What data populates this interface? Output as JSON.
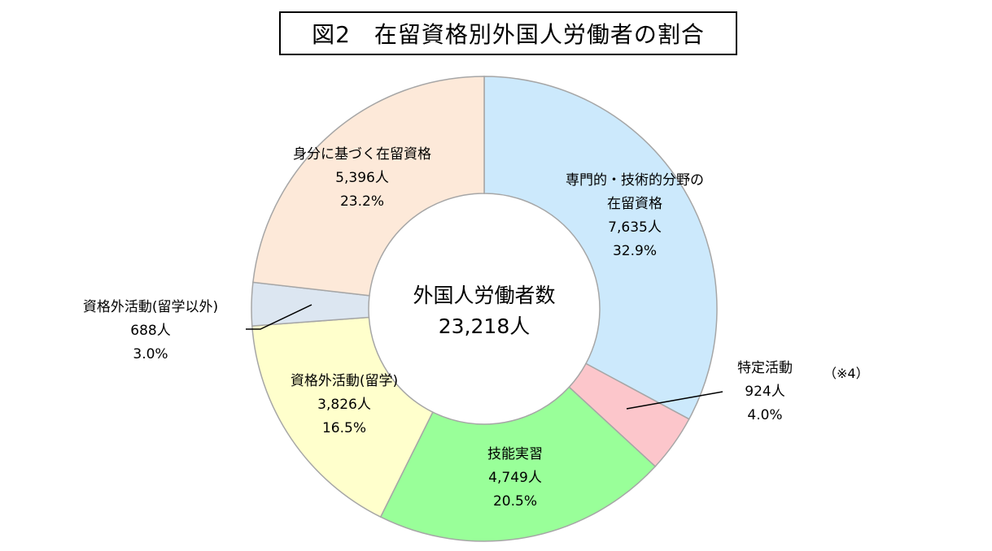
{
  "title": "図2　在留資格別外国人労働者の割合",
  "chart_data": {
    "type": "pie",
    "variant": "donut",
    "center": {
      "line1": "外国人労働者数",
      "line2": "23,218人"
    },
    "note": "（※4）",
    "slices": [
      {
        "label": "専門的・技術的分野の在留資格",
        "label_lines": [
          "専門的・技術的分野の",
          "在留資格"
        ],
        "count": "7,635人",
        "value": 32.9,
        "percent": "32.9%",
        "color": "#cce9fc"
      },
      {
        "label": "特定活動",
        "label_lines": [
          "特定活動"
        ],
        "count": "924人",
        "value": 4.0,
        "percent": "4.0%",
        "color": "#fcc6cb"
      },
      {
        "label": "技能実習",
        "label_lines": [
          "技能実習"
        ],
        "count": "4,749人",
        "value": 20.5,
        "percent": "20.5%",
        "color": "#99ff99"
      },
      {
        "label": "資格外活動(留学)",
        "label_lines": [
          "資格外活動(留学)"
        ],
        "count": "3,826人",
        "value": 16.5,
        "percent": "16.5%",
        "color": "#ffffcc"
      },
      {
        "label": "資格外活動(留学以外)",
        "label_lines": [
          "資格外活動(留学以外)"
        ],
        "count": "688人",
        "value": 3.0,
        "percent": "3.0%",
        "color": "#dce6f1"
      },
      {
        "label": "身分に基づく在留資格",
        "label_lines": [
          "身分に基づく在留資格"
        ],
        "count": "5,396人",
        "value": 23.2,
        "percent": "23.2%",
        "color": "#fde9d9"
      }
    ]
  }
}
